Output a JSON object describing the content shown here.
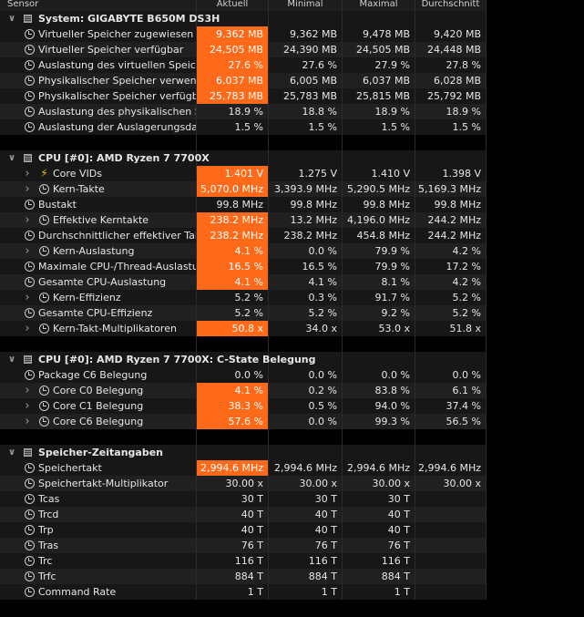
{
  "header": {
    "sensor": "Sensor",
    "current": "Aktuell",
    "min": "Minimal",
    "max": "Maximal",
    "avg": "Durchschnitt"
  },
  "colors": {
    "highlight": "#ff6a1a",
    "row": "#171717",
    "row_alt": "#202020"
  },
  "groups": [
    {
      "title": "System: GIGABYTE B650M DS3H",
      "icon": "chip-icon",
      "rows": [
        {
          "label": "Virtueller Speicher zugewiesen",
          "icon": "clock-icon",
          "expand": false,
          "indent": 0,
          "cur": "9,362 MB",
          "min": "9,362 MB",
          "max": "9,478 MB",
          "avg": "9,420 MB",
          "hl": true
        },
        {
          "label": "Virtueller Speicher verfügbar",
          "icon": "clock-icon",
          "expand": false,
          "indent": 0,
          "cur": "24,505 MB",
          "min": "24,390 MB",
          "max": "24,505 MB",
          "avg": "24,448 MB",
          "hl": true
        },
        {
          "label": "Auslastung des virtuellen Speichers",
          "icon": "clock-icon",
          "expand": false,
          "indent": 0,
          "cur": "27.6 %",
          "min": "27.6 %",
          "max": "27.9 %",
          "avg": "27.8 %",
          "hl": true
        },
        {
          "label": "Physikalischer Speicher verwendet",
          "icon": "clock-icon",
          "expand": false,
          "indent": 0,
          "cur": "6,037 MB",
          "min": "6,005 MB",
          "max": "6,037 MB",
          "avg": "6,028 MB",
          "hl": true
        },
        {
          "label": "Physikalischer Speicher verfügbar",
          "icon": "clock-icon",
          "expand": false,
          "indent": 0,
          "cur": "25,783 MB",
          "min": "25,783 MB",
          "max": "25,815 MB",
          "avg": "25,792 MB",
          "hl": true
        },
        {
          "label": "Auslastung des physikalischen Sp...",
          "icon": "clock-icon",
          "expand": false,
          "indent": 0,
          "cur": "18.9 %",
          "min": "18.8 %",
          "max": "18.9 %",
          "avg": "18.9 %",
          "hl": false
        },
        {
          "label": "Auslastung der Auslagerungsdatei",
          "icon": "clock-icon",
          "expand": false,
          "indent": 0,
          "cur": "1.5 %",
          "min": "1.5 %",
          "max": "1.5 %",
          "avg": "1.5 %",
          "hl": false
        }
      ]
    },
    {
      "title": "CPU [#0]: AMD Ryzen 7 7700X",
      "icon": "chip-icon",
      "rows": [
        {
          "label": "Core VIDs",
          "icon": "bolt-icon",
          "expand": true,
          "indent": 1,
          "cur": "1.401 V",
          "min": "1.275 V",
          "max": "1.410 V",
          "avg": "1.398 V",
          "hl": true
        },
        {
          "label": "Kern-Takte",
          "icon": "clock-icon",
          "expand": true,
          "indent": 1,
          "cur": "5,070.0 MHz",
          "min": "3,393.9 MHz",
          "max": "5,290.5 MHz",
          "avg": "5,169.3 MHz",
          "hl": true
        },
        {
          "label": "Bustakt",
          "icon": "clock-icon",
          "expand": false,
          "indent": 0,
          "cur": "99.8 MHz",
          "min": "99.8 MHz",
          "max": "99.8 MHz",
          "avg": "99.8 MHz",
          "hl": false
        },
        {
          "label": "Effektive Kerntakte",
          "icon": "clock-icon",
          "expand": true,
          "indent": 1,
          "cur": "238.2 MHz",
          "min": "13.2 MHz",
          "max": "4,196.0 MHz",
          "avg": "244.2 MHz",
          "hl": true
        },
        {
          "label": "Durchschnittlicher effektiver Takt",
          "icon": "clock-icon",
          "expand": false,
          "indent": 0,
          "cur": "238.2 MHz",
          "min": "238.2 MHz",
          "max": "454.8 MHz",
          "avg": "244.2 MHz",
          "hl": true
        },
        {
          "label": "Kern-Auslastung",
          "icon": "clock-icon",
          "expand": true,
          "indent": 1,
          "cur": "4.1 %",
          "min": "0.0 %",
          "max": "79.9 %",
          "avg": "4.2 %",
          "hl": true
        },
        {
          "label": "Maximale CPU-/Thread-Auslastung",
          "icon": "clock-icon",
          "expand": false,
          "indent": 0,
          "cur": "16.5 %",
          "min": "16.5 %",
          "max": "79.9 %",
          "avg": "17.2 %",
          "hl": true
        },
        {
          "label": "Gesamte CPU-Auslastung",
          "icon": "clock-icon",
          "expand": false,
          "indent": 0,
          "cur": "4.1 %",
          "min": "4.1 %",
          "max": "8.1 %",
          "avg": "4.2 %",
          "hl": true
        },
        {
          "label": "Kern-Effizienz",
          "icon": "clock-icon",
          "expand": true,
          "indent": 1,
          "cur": "5.2 %",
          "min": "0.3 %",
          "max": "91.7 %",
          "avg": "5.2 %",
          "hl": false
        },
        {
          "label": "Gesamte CPU-Effizienz",
          "icon": "clock-icon",
          "expand": false,
          "indent": 0,
          "cur": "5.2 %",
          "min": "5.2 %",
          "max": "9.2 %",
          "avg": "5.2 %",
          "hl": false
        },
        {
          "label": "Kern-Takt-Multiplikatoren",
          "icon": "clock-icon",
          "expand": true,
          "indent": 1,
          "cur": "50.8 x",
          "min": "34.0 x",
          "max": "53.0 x",
          "avg": "51.8 x",
          "hl": true
        }
      ]
    },
    {
      "title": "CPU [#0]: AMD Ryzen 7 7700X: C-State Belegung",
      "icon": "chip-icon",
      "rows": [
        {
          "label": "Package C6 Belegung",
          "icon": "clock-icon",
          "expand": false,
          "indent": 0,
          "cur": "0.0 %",
          "min": "0.0 %",
          "max": "0.0 %",
          "avg": "0.0 %",
          "hl": false
        },
        {
          "label": "Core C0 Belegung",
          "icon": "clock-icon",
          "expand": true,
          "indent": 1,
          "cur": "4.1 %",
          "min": "0.2 %",
          "max": "83.8 %",
          "avg": "6.1 %",
          "hl": true
        },
        {
          "label": "Core C1 Belegung",
          "icon": "clock-icon",
          "expand": true,
          "indent": 1,
          "cur": "38.3 %",
          "min": "0.5 %",
          "max": "94.0 %",
          "avg": "37.4 %",
          "hl": true
        },
        {
          "label": "Core C6 Belegung",
          "icon": "clock-icon",
          "expand": true,
          "indent": 1,
          "cur": "57.6 %",
          "min": "0.0 %",
          "max": "99.3 %",
          "avg": "56.5 %",
          "hl": true
        }
      ]
    },
    {
      "title": "Speicher-Zeitangaben",
      "icon": "chip-icon",
      "rows": [
        {
          "label": "Speichertakt",
          "icon": "clock-icon",
          "expand": false,
          "indent": 0,
          "cur": "2,994.6 MHz",
          "min": "2,994.6 MHz",
          "max": "2,994.6 MHz",
          "avg": "2,994.6 MHz",
          "hl": true
        },
        {
          "label": "Speichertakt-Multiplikator",
          "icon": "clock-icon",
          "expand": false,
          "indent": 0,
          "cur": "30.00 x",
          "min": "30.00 x",
          "max": "30.00 x",
          "avg": "30.00 x",
          "hl": false
        },
        {
          "label": "Tcas",
          "icon": "clock-icon",
          "expand": false,
          "indent": 0,
          "cur": "30 T",
          "min": "30 T",
          "max": "30 T",
          "avg": "",
          "hl": false
        },
        {
          "label": "Trcd",
          "icon": "clock-icon",
          "expand": false,
          "indent": 0,
          "cur": "40 T",
          "min": "40 T",
          "max": "40 T",
          "avg": "",
          "hl": false
        },
        {
          "label": "Trp",
          "icon": "clock-icon",
          "expand": false,
          "indent": 0,
          "cur": "40 T",
          "min": "40 T",
          "max": "40 T",
          "avg": "",
          "hl": false
        },
        {
          "label": "Tras",
          "icon": "clock-icon",
          "expand": false,
          "indent": 0,
          "cur": "76 T",
          "min": "76 T",
          "max": "76 T",
          "avg": "",
          "hl": false
        },
        {
          "label": "Trc",
          "icon": "clock-icon",
          "expand": false,
          "indent": 0,
          "cur": "116 T",
          "min": "116 T",
          "max": "116 T",
          "avg": "",
          "hl": false
        },
        {
          "label": "Trfc",
          "icon": "clock-icon",
          "expand": false,
          "indent": 0,
          "cur": "884 T",
          "min": "884 T",
          "max": "884 T",
          "avg": "",
          "hl": false
        },
        {
          "label": "Command Rate",
          "icon": "clock-icon",
          "expand": false,
          "indent": 0,
          "cur": "1 T",
          "min": "1 T",
          "max": "1 T",
          "avg": "",
          "hl": false
        }
      ]
    }
  ]
}
